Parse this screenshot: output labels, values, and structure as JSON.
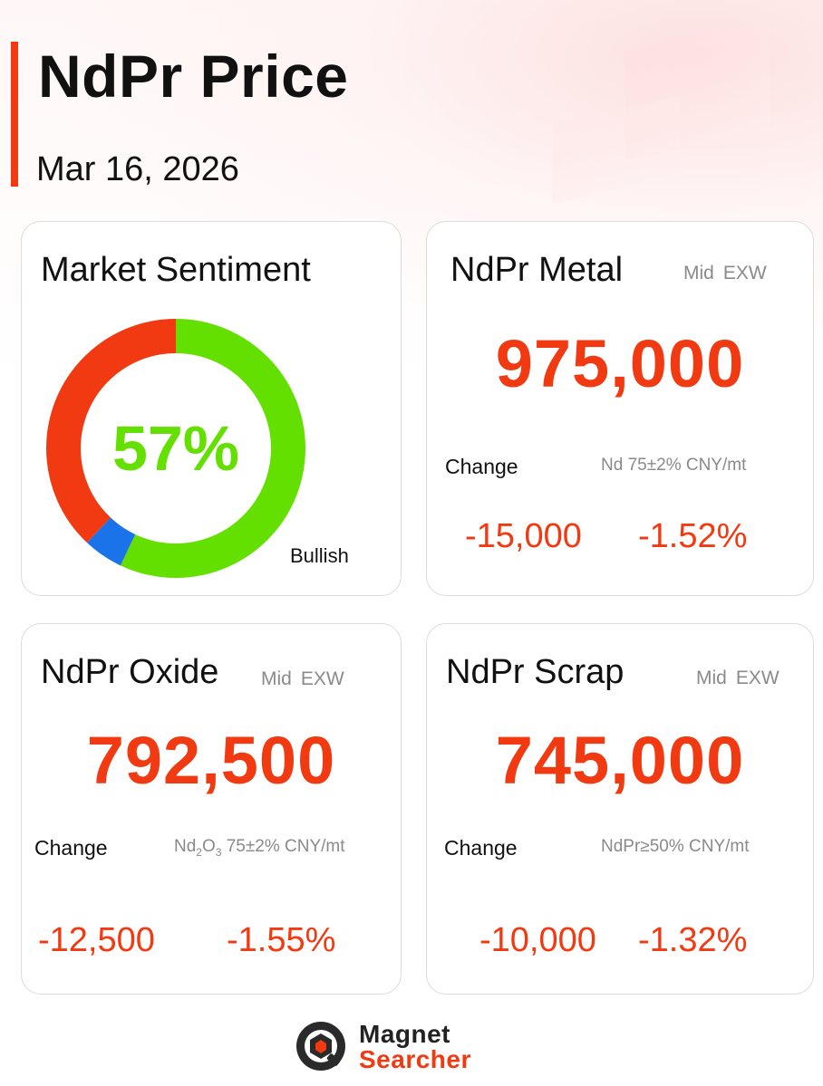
{
  "header": {
    "title": "NdPr Price",
    "date": "Mar 16, 2026"
  },
  "colors": {
    "accent": "#f23a12",
    "bullish": "#64e000",
    "bearish": "#f23a12",
    "neutral": "#1a73e8",
    "muted": "#8a8a8a"
  },
  "sentiment": {
    "title": "Market Sentiment",
    "percent_label": "57%",
    "bullish_label": "Bullish",
    "chart_data": {
      "type": "pie",
      "slices": [
        {
          "value": 57,
          "color": "#64e000"
        },
        {
          "value": 5,
          "color": "#1a73e8"
        },
        {
          "value": 38,
          "color": "#f23a12"
        }
      ]
    }
  },
  "metal": {
    "title": "NdPr Metal",
    "tag1": "Mid",
    "tag2": "EXW",
    "price": "975,000",
    "change_label": "Change",
    "spec": "Nd 75±2% CNY/mt",
    "change_abs": "-15,000",
    "change_pct": "-1.52%"
  },
  "oxide": {
    "title": "NdPr Oxide",
    "tag1": "Mid",
    "tag2": "EXW",
    "price": "792,500",
    "change_label": "Change",
    "spec_a": "Nd",
    "spec_sub1": "2",
    "spec_b": "O",
    "spec_sub2": "3",
    "spec_c": " 75±2% CNY/mt",
    "change_abs": "-12,500",
    "change_pct": "-1.55%"
  },
  "scrap": {
    "title": "NdPr Scrap",
    "tag1": "Mid",
    "tag2": "EXW",
    "price": "745,000",
    "change_label": "Change",
    "spec": "NdPr≥50% CNY/mt",
    "change_abs": "-10,000",
    "change_pct": "-1.32%"
  },
  "footer": {
    "logo_top": "Magnet",
    "logo_bottom": "Searcher",
    "logo_icon": "magnet-searcher-logo-icon"
  }
}
